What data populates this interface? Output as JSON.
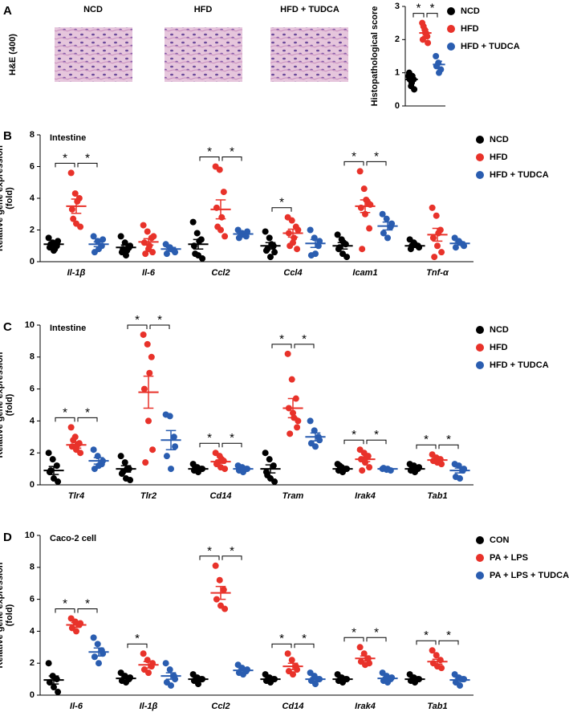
{
  "histology": {
    "label": "A",
    "stain": "H&E (400)",
    "images": [
      "NCD",
      "HFD",
      "HFD + TUDCA"
    ]
  },
  "chart_data": [
    {
      "type": "strip",
      "ylabel": [
        "Histopathological score"
      ],
      "categories": [
        null
      ],
      "series": [
        {
          "name": "NCD",
          "color": "#000000",
          "values": [
            [
              0.9,
              0.6,
              0.8,
              1.0,
              0.7,
              0.5,
              0.8,
              0.9
            ]
          ],
          "means": [
            0.8
          ],
          "sems": [
            0.1
          ]
        },
        {
          "name": "HFD",
          "color": "#e8322a",
          "values": [
            [
              2.5,
              2.3,
              2.1,
              2.0,
              2.2,
              1.9,
              2.4,
              2.2
            ]
          ],
          "means": [
            2.2
          ],
          "sems": [
            0.1
          ]
        },
        {
          "name": "HFD + TUDCA",
          "color": "#2a5db0",
          "values": [
            [
              1.5,
              1.3,
              1.1,
              1.2,
              1.0
            ]
          ],
          "means": [
            1.25
          ],
          "sems": [
            0.1
          ]
        }
      ],
      "ylim": [
        0,
        3
      ],
      "yticks": [
        0,
        1,
        2,
        3
      ],
      "significance": [
        {
          "category": 0,
          "from": 0,
          "to": 1,
          "label": "*"
        },
        {
          "category": 0,
          "from": 1,
          "to": 2,
          "label": "*"
        }
      ]
    },
    {
      "type": "strip",
      "label": "B",
      "title": "Intestine",
      "ylabel": [
        "Relative gene expression",
        "(fold)"
      ],
      "categories": [
        "Il-1β",
        "Il-6",
        "Ccl2",
        "Ccl4",
        "Icam1",
        "Tnf-α"
      ],
      "series": [
        {
          "name": "NCD",
          "color": "#000000",
          "values": [
            [
              1.5,
              1.2,
              1.0,
              0.9,
              0.7,
              1.3,
              1.1,
              0.8
            ],
            [
              1.6,
              1.2,
              0.9,
              0.6,
              0.4,
              1.0,
              0.8,
              0.7
            ],
            [
              2.5,
              1.8,
              1.4,
              1.0,
              0.4,
              0.2,
              0.5,
              1.3
            ],
            [
              1.9,
              1.5,
              1.0,
              0.7,
              0.3,
              0.6,
              0.8,
              1.1
            ],
            [
              1.7,
              1.4,
              1.1,
              0.8,
              0.5,
              0.3,
              0.9,
              1.2
            ],
            [
              1.4,
              1.2,
              1.0,
              0.8,
              1.1,
              0.9,
              1.0
            ]
          ],
          "means": [
            1.1,
            0.9,
            1.1,
            1.0,
            1.0,
            1.0
          ],
          "sems": [
            0.1,
            0.15,
            0.3,
            0.2,
            0.2,
            0.1
          ]
        },
        {
          "name": "HFD",
          "color": "#e8322a",
          "values": [
            [
              5.6,
              4.3,
              4.0,
              3.3,
              2.4,
              2.2,
              2.7,
              3.8
            ],
            [
              2.3,
              1.9,
              1.5,
              1.2,
              0.8,
              0.6,
              0.5,
              1.0,
              1.6
            ],
            [
              6.0,
              5.8,
              4.4,
              3.4,
              2.0,
              1.6,
              2.2,
              2.8
            ],
            [
              2.8,
              2.6,
              2.2,
              1.8,
              1.2,
              0.8,
              1.0,
              1.5,
              2.0
            ],
            [
              5.7,
              4.6,
              3.7,
              3.4,
              3.0,
              2.1,
              0.8,
              3.9,
              3.6
            ],
            [
              3.4,
              2.9,
              2.0,
              1.5,
              1.0,
              0.6,
              0.3,
              1.8
            ]
          ],
          "means": [
            3.5,
            1.25,
            3.3,
            1.8,
            3.5,
            1.7
          ],
          "sems": [
            0.45,
            0.2,
            0.6,
            0.25,
            0.4,
            0.4
          ]
        },
        {
          "name": "HFD + TUDCA",
          "color": "#2a5db0",
          "values": [
            [
              1.6,
              1.3,
              1.0,
              0.6,
              0.8,
              1.4
            ],
            [
              1.1,
              0.9,
              0.7,
              0.5,
              0.8,
              0.6
            ],
            [
              2.0,
              1.8,
              1.6,
              1.5,
              1.7,
              1.9
            ],
            [
              2.0,
              1.5,
              1.0,
              0.4,
              0.5,
              1.3
            ],
            [
              3.0,
              2.7,
              2.2,
              1.8,
              1.5,
              2.4
            ],
            [
              1.5,
              1.3,
              1.1,
              0.9,
              1.2,
              1.0
            ]
          ],
          "means": [
            1.1,
            0.8,
            1.75,
            1.15,
            2.25,
            1.15
          ],
          "sems": [
            0.15,
            0.1,
            0.1,
            0.25,
            0.25,
            0.1
          ]
        }
      ],
      "ylim": [
        0,
        8
      ],
      "yticks": [
        0,
        2,
        4,
        6,
        8
      ],
      "significance": [
        {
          "category": 0,
          "from": 0,
          "to": 1,
          "label": "*"
        },
        {
          "category": 0,
          "from": 1,
          "to": 2,
          "label": "*"
        },
        {
          "category": 2,
          "from": 0,
          "to": 1,
          "label": "*"
        },
        {
          "category": 2,
          "from": 1,
          "to": 2,
          "label": "*"
        },
        {
          "category": 3,
          "from": 0,
          "to": 1,
          "label": "*"
        },
        {
          "category": 4,
          "from": 0,
          "to": 1,
          "label": "*"
        },
        {
          "category": 4,
          "from": 1,
          "to": 2,
          "label": "*"
        }
      ]
    },
    {
      "type": "strip",
      "label": "C",
      "title": "Intestine",
      "ylabel": [
        "Relative gene expression",
        "(fold)"
      ],
      "categories": [
        "Tlr4",
        "Tlr2",
        "Cd14",
        "Tram",
        "Irak4",
        "Tab1"
      ],
      "series": [
        {
          "name": "NCD",
          "color": "#000000",
          "values": [
            [
              2.0,
              1.6,
              1.2,
              0.8,
              0.4,
              0.2,
              0.9
            ],
            [
              1.8,
              1.4,
              1.0,
              0.7,
              0.4,
              0.3,
              0.8,
              1.0
            ],
            [
              1.3,
              1.1,
              1.0,
              0.9,
              0.8,
              1.0,
              1.1
            ],
            [
              2.0,
              1.6,
              1.2,
              0.8,
              0.4,
              0.2,
              0.6
            ],
            [
              1.3,
              1.1,
              1.0,
              0.9,
              0.8,
              1.0,
              1.2
            ],
            [
              1.3,
              1.2,
              1.0,
              0.9,
              0.8,
              1.1,
              1.0
            ]
          ],
          "means": [
            0.9,
            1.0,
            1.0,
            1.0,
            1.0,
            1.0
          ],
          "sems": [
            0.25,
            0.2,
            0.06,
            0.25,
            0.06,
            0.07
          ]
        },
        {
          "name": "HFD",
          "color": "#e8322a",
          "values": [
            [
              3.6,
              3.0,
              2.6,
              2.4,
              2.2,
              2.0,
              2.8,
              2.5
            ],
            [
              9.4,
              8.8,
              8.0,
              6.0,
              4.0,
              2.2,
              1.4,
              7.0
            ],
            [
              2.0,
              1.8,
              1.5,
              1.3,
              1.1,
              1.0,
              1.4,
              1.6
            ],
            [
              8.2,
              6.6,
              5.4,
              4.8,
              4.5,
              3.6,
              3.2,
              4.2,
              4.0
            ],
            [
              2.2,
              2.0,
              1.8,
              1.6,
              1.4,
              1.1,
              0.9,
              1.7
            ],
            [
              1.9,
              1.7,
              1.6,
              1.5,
              1.4,
              1.3,
              1.5,
              1.6
            ]
          ],
          "means": [
            2.5,
            5.8,
            1.45,
            4.8,
            1.6,
            1.55
          ],
          "sems": [
            0.2,
            1.0,
            0.1,
            0.6,
            0.15,
            0.07
          ]
        },
        {
          "name": "HFD + TUDCA",
          "color": "#2a5db0",
          "values": [
            [
              2.2,
              1.8,
              1.3,
              1.0,
              1.2,
              1.5
            ],
            [
              4.4,
              4.3,
              3.0,
              1.8,
              1.0,
              2.4
            ],
            [
              1.2,
              1.1,
              1.0,
              0.9,
              0.8,
              1.0
            ],
            [
              4.0,
              3.4,
              3.0,
              2.6,
              2.4,
              2.8
            ],
            [
              1.0,
              0.95,
              0.9,
              1.05,
              1.0
            ],
            [
              1.3,
              1.2,
              0.9,
              0.5,
              0.4,
              1.0
            ]
          ],
          "means": [
            1.5,
            2.8,
            1.0,
            3.0,
            1.0,
            0.9
          ],
          "sems": [
            0.2,
            0.6,
            0.05,
            0.25,
            0.03,
            0.15
          ]
        }
      ],
      "ylim": [
        0,
        10
      ],
      "yticks": [
        0,
        2,
        4,
        6,
        8,
        10
      ],
      "significance": [
        {
          "category": 0,
          "from": 0,
          "to": 1,
          "label": "*"
        },
        {
          "category": 0,
          "from": 1,
          "to": 2,
          "label": "*"
        },
        {
          "category": 1,
          "from": 0,
          "to": 1,
          "label": "*"
        },
        {
          "category": 1,
          "from": 1,
          "to": 2,
          "label": "*"
        },
        {
          "category": 2,
          "from": 0,
          "to": 1,
          "label": "*"
        },
        {
          "category": 2,
          "from": 1,
          "to": 2,
          "label": "*"
        },
        {
          "category": 3,
          "from": 0,
          "to": 1,
          "label": "*"
        },
        {
          "category": 3,
          "from": 1,
          "to": 2,
          "label": "*"
        },
        {
          "category": 4,
          "from": 0,
          "to": 1,
          "label": "*"
        },
        {
          "category": 4,
          "from": 1,
          "to": 2,
          "label": "*"
        },
        {
          "category": 5,
          "from": 0,
          "to": 1,
          "label": "*"
        },
        {
          "category": 5,
          "from": 1,
          "to": 2,
          "label": "*"
        }
      ]
    },
    {
      "type": "strip",
      "label": "D",
      "title": "Caco-2 cell",
      "ylabel": [
        "Relative gene expression",
        "(fold)"
      ],
      "categories": [
        "Il-6",
        "Il-1β",
        "Ccl2",
        "Cd14",
        "Irak4",
        "Tab1"
      ],
      "series": [
        {
          "name": "CON",
          "color": "#000000",
          "values": [
            [
              2.0,
              1.2,
              1.0,
              0.8,
              0.5,
              0.2
            ],
            [
              1.4,
              1.2,
              1.0,
              0.9,
              0.8,
              1.1
            ],
            [
              1.3,
              1.1,
              1.0,
              0.9,
              0.7,
              1.0
            ],
            [
              1.3,
              1.1,
              1.0,
              0.9,
              0.8,
              1.0
            ],
            [
              1.3,
              1.1,
              1.0,
              0.9,
              0.8,
              1.0
            ],
            [
              1.3,
              1.1,
              1.0,
              0.9,
              0.8,
              1.0
            ]
          ],
          "means": [
            0.95,
            1.05,
            1.0,
            1.0,
            1.0,
            1.0
          ],
          "sems": [
            0.25,
            0.1,
            0.08,
            0.07,
            0.07,
            0.07
          ]
        },
        {
          "name": "PA + LPS",
          "color": "#e8322a",
          "values": [
            [
              4.8,
              4.6,
              4.4,
              4.2,
              4.0,
              4.5
            ],
            [
              2.6,
              2.2,
              1.8,
              1.6,
              1.4,
              2.0
            ],
            [
              8.1,
              7.2,
              6.6,
              6.0,
              5.6,
              5.4
            ],
            [
              2.6,
              2.2,
              1.8,
              1.5,
              1.3,
              1.6
            ],
            [
              3.0,
              2.6,
              2.3,
              2.1,
              1.9,
              2.0
            ],
            [
              2.8,
              2.5,
              2.2,
              2.0,
              1.8,
              1.7
            ]
          ],
          "means": [
            4.4,
            1.9,
            6.4,
            1.8,
            2.3,
            2.1
          ],
          "sems": [
            0.15,
            0.2,
            0.4,
            0.2,
            0.15,
            0.15
          ]
        },
        {
          "name": "PA + LPS + TUDCA",
          "color": "#2a5db0",
          "values": [
            [
              3.6,
              3.2,
              2.8,
              2.4,
              2.0,
              2.6
            ],
            [
              2.0,
              1.6,
              1.2,
              0.8,
              0.6,
              1.0
            ],
            [
              1.9,
              1.7,
              1.5,
              1.4,
              1.3,
              1.6
            ],
            [
              1.4,
              1.2,
              1.0,
              0.9,
              0.7,
              1.0
            ],
            [
              1.4,
              1.2,
              1.0,
              0.9,
              0.8,
              1.1
            ],
            [
              1.3,
              1.1,
              1.0,
              0.8,
              0.6,
              1.0
            ]
          ],
          "means": [
            2.7,
            1.2,
            1.55,
            1.0,
            1.05,
            0.95
          ],
          "sems": [
            0.25,
            0.2,
            0.1,
            0.1,
            0.08,
            0.1
          ]
        }
      ],
      "ylim": [
        0,
        10
      ],
      "yticks": [
        0,
        2,
        4,
        6,
        8,
        10
      ],
      "significance": [
        {
          "category": 0,
          "from": 0,
          "to": 1,
          "label": "*"
        },
        {
          "category": 0,
          "from": 1,
          "to": 2,
          "label": "*"
        },
        {
          "category": 1,
          "from": 0,
          "to": 1,
          "label": "*"
        },
        {
          "category": 2,
          "from": 0,
          "to": 1,
          "label": "*"
        },
        {
          "category": 2,
          "from": 1,
          "to": 2,
          "label": "*"
        },
        {
          "category": 3,
          "from": 0,
          "to": 1,
          "label": "*"
        },
        {
          "category": 3,
          "from": 1,
          "to": 2,
          "label": "*"
        },
        {
          "category": 4,
          "from": 0,
          "to": 1,
          "label": "*"
        },
        {
          "category": 4,
          "from": 1,
          "to": 2,
          "label": "*"
        },
        {
          "category": 5,
          "from": 0,
          "to": 1,
          "label": "*"
        },
        {
          "category": 5,
          "from": 1,
          "to": 2,
          "label": "*"
        }
      ]
    }
  ]
}
